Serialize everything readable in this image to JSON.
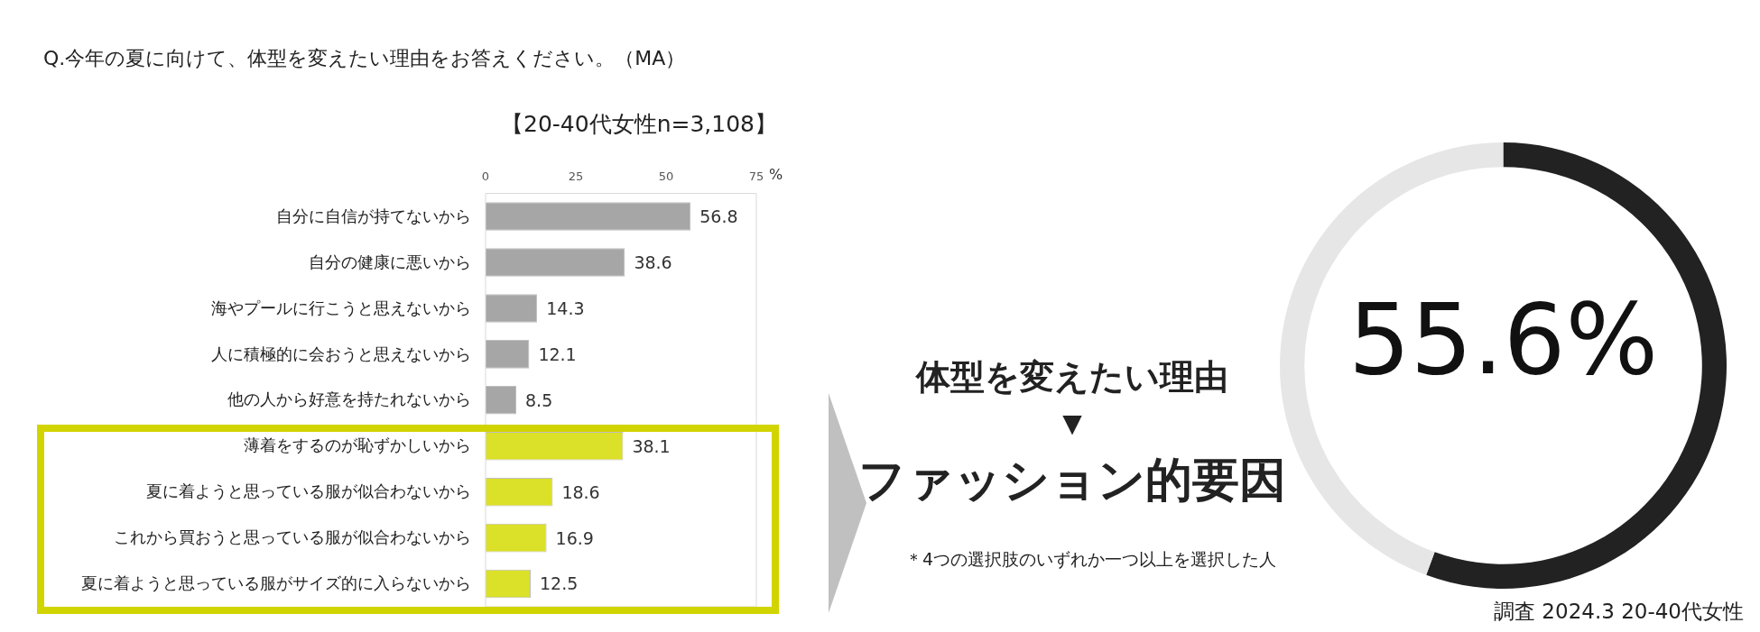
{
  "chart_data": [
    {
      "type": "bar",
      "orientation": "horizontal",
      "title": "Q.今年の夏に向けて、体型を変えたい理由をお答えください。（MA）",
      "subtitle": "【20-40代女性n=3,108】",
      "xlabel": "%",
      "categories": [
        "自分に自信が持てないから",
        "自分の健康に悪いから",
        "海やプールに行こうと思えないから",
        "人に積極的に会おうと思えないから",
        "他の人から好意を持たれないから",
        "薄着をするのが恥ずかしいから",
        "夏に着ようと思っている服が似合わないから",
        "これから買おうと思っている服が似合わないから",
        "夏に着ようと思っている服がサイズ的に入らないから"
      ],
      "values": [
        56.8,
        38.6,
        14.3,
        12.1,
        8.5,
        38.1,
        18.6,
        16.9,
        12.5
      ],
      "colors": [
        "#a6a6a6",
        "#a6a6a6",
        "#a6a6a6",
        "#a6a6a6",
        "#a6a6a6",
        "#dbe028",
        "#dbe028",
        "#dbe028",
        "#dbe028"
      ],
      "xlim": [
        0,
        75
      ],
      "xticks": [
        0,
        25,
        50,
        75
      ],
      "grid": false,
      "legend": false,
      "data_labels": true
    },
    {
      "type": "donut",
      "categories": [
        null,
        null
      ],
      "values": [
        55.6,
        44.4
      ],
      "colors": [
        "#222222",
        "#e6e6e6"
      ],
      "value_labels": [
        "55.6%",
        null
      ],
      "legend": false,
      "annotations": [
        "体型を変えたい理由",
        "▼",
        "ファッション的要因",
        "＊4つの選択肢のいずれか一つ以上を選択した人",
        "調査 2024.3 20-40代女性"
      ]
    }
  ]
}
